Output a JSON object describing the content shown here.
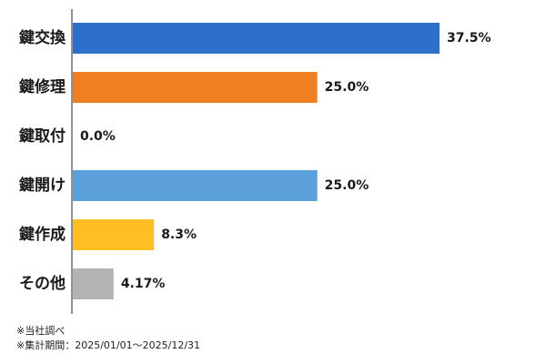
{
  "chart_data": {
    "type": "bar",
    "orientation": "horizontal",
    "categories": [
      "鍵交換",
      "鍵修理",
      "鍵取付",
      "鍵開け",
      "鍵作成",
      "その他"
    ],
    "values": [
      37.5,
      25.0,
      0.0,
      25.0,
      8.3,
      4.17
    ],
    "value_labels": [
      "37.5%",
      "25.0%",
      "0.0%",
      "25.0%",
      "8.3%",
      "4.17%"
    ],
    "colors": [
      "#2e6fcc",
      "#f07f22",
      "#999999",
      "#5b9fdb",
      "#ffbf24",
      "#b3b3b3"
    ],
    "xlim": [
      0,
      40
    ],
    "grid": false,
    "legend": "none",
    "title": "",
    "xlabel": "",
    "ylabel": ""
  },
  "notes": [
    "※当社調べ",
    "※集計期間：2025/01/01〜2025/12/31"
  ]
}
